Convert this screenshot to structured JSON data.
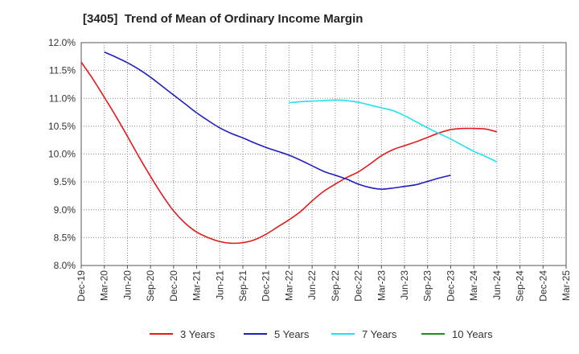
{
  "title": "[3405]  Trend of Mean of Ordinary Income Margin",
  "chart_data": {
    "type": "line",
    "title": "[3405]  Trend of Mean of Ordinary Income Margin",
    "xlabel": "",
    "ylabel": "",
    "x_ticks": [
      "Dec-19",
      "Mar-20",
      "Jun-20",
      "Sep-20",
      "Dec-20",
      "Mar-21",
      "Jun-21",
      "Sep-21",
      "Dec-21",
      "Mar-22",
      "Jun-22",
      "Sep-22",
      "Dec-22",
      "Mar-23",
      "Jun-23",
      "Sep-23",
      "Dec-23",
      "Mar-24",
      "Jun-24",
      "Sep-24",
      "Dec-24",
      "Mar-25"
    ],
    "y_ticks": [
      "8.0%",
      "8.5%",
      "9.0%",
      "9.5%",
      "10.0%",
      "10.5%",
      "11.0%",
      "11.5%",
      "12.0%"
    ],
    "ylim": [
      8.0,
      12.0
    ],
    "grid": "horizontal and vertical dotted",
    "legend_position": "bottom",
    "series": [
      {
        "name": "3 Years",
        "color": "#e41a1c",
        "start_index": 0,
        "values": [
          11.65,
          11.35,
          11.02,
          10.68,
          10.32,
          9.95,
          9.6,
          9.27,
          8.98,
          8.76,
          8.6,
          8.5,
          8.43,
          8.4,
          8.41,
          8.46,
          8.56,
          8.69,
          8.82,
          8.97,
          9.16,
          9.33,
          9.46,
          9.58,
          9.68,
          9.82,
          9.97,
          10.08,
          10.15,
          10.22,
          10.3,
          10.38,
          10.44,
          10.46,
          10.46,
          10.45,
          10.4
        ]
      },
      {
        "name": "5 Years",
        "color": "#1f1fbf",
        "start_index": 1,
        "values": [
          11.83,
          11.74,
          11.64,
          11.52,
          11.38,
          11.22,
          11.06,
          10.9,
          10.74,
          10.6,
          10.47,
          10.37,
          10.29,
          10.2,
          10.12,
          10.05,
          9.98,
          9.89,
          9.79,
          9.69,
          9.62,
          9.55,
          9.46,
          9.4,
          9.37,
          9.39,
          9.42,
          9.45,
          9.51,
          9.57,
          9.62
        ]
      },
      {
        "name": "7 Years",
        "color": "#22e0f0",
        "start_index": 9,
        "values": [
          10.92,
          10.94,
          10.95,
          10.96,
          10.97,
          10.96,
          10.93,
          10.88,
          10.83,
          10.78,
          10.69,
          10.58,
          10.47,
          10.37,
          10.27,
          10.16,
          10.05,
          9.96,
          9.86
        ]
      },
      {
        "name": "10 Years",
        "color": "#1e8c1e",
        "start_index": 0,
        "values": []
      }
    ]
  }
}
